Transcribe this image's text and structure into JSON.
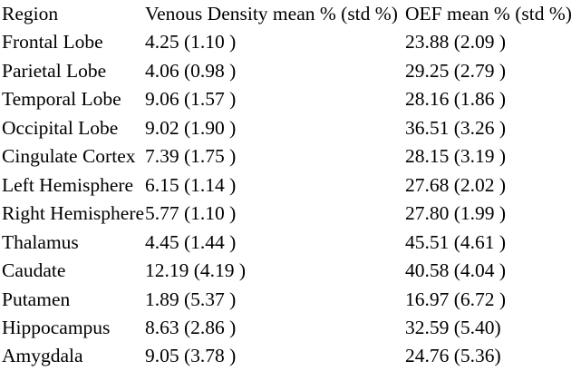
{
  "colors": {
    "text": "#000000",
    "background": "#ffffff"
  },
  "chart_data": {
    "type": "table",
    "columns": [
      "Region",
      "Venous Density mean % (std %)",
      "OEF mean % (std %)"
    ],
    "rows": [
      [
        "Frontal Lobe",
        "4.25 (1.10 )",
        "23.88 (2.09 )"
      ],
      [
        "Parietal Lobe",
        "4.06 (0.98 )",
        "29.25 (2.79 )"
      ],
      [
        "Temporal Lobe",
        "9.06 (1.57 )",
        "28.16 (1.86 )"
      ],
      [
        "Occipital Lobe",
        "9.02 (1.90 )",
        "36.51 (3.26 )"
      ],
      [
        "Cingulate Cortex",
        "7.39 (1.75 )",
        "28.15 (3.19 )"
      ],
      [
        "Left Hemisphere",
        "6.15 (1.14 )",
        "27.68 (2.02 )"
      ],
      [
        "Right Hemisphere",
        "5.77 (1.10 )",
        "27.80 (1.99 )"
      ],
      [
        "Thalamus",
        "4.45 (1.44 )",
        "45.51 (4.61 )"
      ],
      [
        "Caudate",
        "12.19 (4.19 )",
        "40.58 (4.04 )"
      ],
      [
        "Putamen",
        "1.89 (5.37 )",
        "16.97 (6.72 )"
      ],
      [
        "Hippocampus",
        "8.63 (2.86 )",
        "32.59 (5.40)"
      ],
      [
        "Amygdala",
        "9.05 (3.78 )",
        "24.76 (5.36)"
      ]
    ],
    "layout": {
      "grid": false,
      "borders": "none",
      "header_style": "plain"
    }
  }
}
